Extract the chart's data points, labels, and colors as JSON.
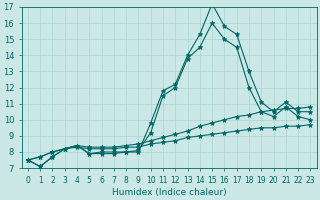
{
  "xlabel": "Humidex (Indice chaleur)",
  "ylabel": "",
  "bg_color": "#cce8e6",
  "line_color": "#006666",
  "grid_color": "#aad4d2",
  "x": [
    0,
    1,
    2,
    3,
    4,
    5,
    6,
    7,
    8,
    9,
    10,
    11,
    12,
    13,
    14,
    15,
    16,
    17,
    18,
    19,
    20,
    21,
    22,
    23
  ],
  "line_spike": [
    7.5,
    7.1,
    7.7,
    8.2,
    8.4,
    7.9,
    7.9,
    7.9,
    8.0,
    8.0,
    9.8,
    11.8,
    12.2,
    14.0,
    15.3,
    17.2,
    15.8,
    15.3,
    13.0,
    11.1,
    10.5,
    11.1,
    10.5,
    10.5
  ],
  "line_spike2": [
    7.5,
    7.1,
    7.7,
    8.2,
    8.4,
    7.9,
    8.0,
    8.0,
    8.0,
    8.1,
    9.2,
    11.5,
    12.0,
    13.8,
    14.5,
    16.0,
    15.0,
    14.5,
    12.0,
    10.5,
    10.2,
    10.8,
    10.2,
    10.0
  ],
  "line_low1": [
    7.5,
    7.7,
    8.0,
    8.2,
    8.3,
    8.2,
    8.2,
    8.2,
    8.3,
    8.3,
    8.5,
    8.6,
    8.7,
    8.9,
    9.0,
    9.1,
    9.2,
    9.3,
    9.4,
    9.5,
    9.5,
    9.6,
    9.6,
    9.7
  ],
  "line_low2": [
    7.5,
    7.7,
    8.0,
    8.2,
    8.4,
    8.3,
    8.3,
    8.3,
    8.4,
    8.5,
    8.7,
    8.9,
    9.1,
    9.3,
    9.6,
    9.8,
    10.0,
    10.2,
    10.3,
    10.5,
    10.6,
    10.7,
    10.7,
    10.8
  ],
  "ylim": [
    7,
    17
  ],
  "xlim": [
    -0.5,
    23.5
  ],
  "yticks": [
    7,
    8,
    9,
    10,
    11,
    12,
    13,
    14,
    15,
    16,
    17
  ],
  "xticks": [
    0,
    1,
    2,
    3,
    4,
    5,
    6,
    7,
    8,
    9,
    10,
    11,
    12,
    13,
    14,
    15,
    16,
    17,
    18,
    19,
    20,
    21,
    22,
    23
  ],
  "xtick_labels": [
    "0",
    "1",
    "2",
    "3",
    "4",
    "5",
    "6",
    "7",
    "8",
    "9",
    "10",
    "11",
    "12",
    "13",
    "14",
    "15",
    "16",
    "17",
    "18",
    "19",
    "20",
    "21",
    "22",
    "23"
  ],
  "marker": "*",
  "markersize": 3.5,
  "linewidth": 0.8,
  "xlabel_fontsize": 6.5,
  "tick_fontsize": 5.5,
  "ytick_fontsize": 6.0
}
